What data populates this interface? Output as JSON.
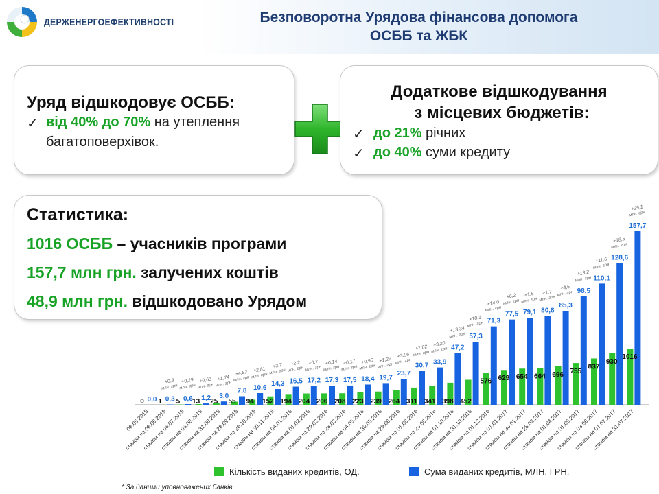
{
  "header": {
    "org_name": "ДЕРЖЕНЕРГОЕФЕКТИВНОСТІ",
    "title_line1": "Безповоротна Урядова фінансова допомога",
    "title_line2": "ОСББ та ЖБК"
  },
  "box1": {
    "heading": "Уряд відшкодовує ОСББ:",
    "bullet_mark": "✓",
    "item_highlight": "від 40%  до 70%",
    "item_text": " на утеплення",
    "item_text2": "багатоповерхівок."
  },
  "box2": {
    "heading_line1": "Додаткове відшкодування",
    "heading_line2": "з місцевих бюджетів:",
    "bullet_mark": "✓",
    "items": [
      {
        "highlight": "до 21%",
        "text": " річних"
      },
      {
        "highlight": "до 40%",
        "text": " суми кредиту"
      }
    ]
  },
  "stats": {
    "heading": "Статистика:",
    "lines": [
      {
        "highlight": "1016 ОСББ",
        "text": " – учасників програми"
      },
      {
        "highlight": "157,7 млн грн.",
        "text": " залучених коштів"
      },
      {
        "highlight": "48,9 млн грн.",
        "text": " відшкодовано Урядом"
      }
    ]
  },
  "footnote": "* За даними уповноважених банків",
  "colors": {
    "green_bar": "#2ec22e",
    "blue_bar": "#1763e0",
    "blue_label": "#1f6fd6",
    "highlight_green": "#18a326",
    "title_blue": "#1e3c72"
  },
  "chart_data": {
    "type": "bar",
    "categories": [
      "08.05.2015",
      "станом на 08.06.2015",
      "станом на 06.07.2015",
      "станом на 03.08.2015",
      "станом на 31.08.2015",
      "станом на 28.09.2015",
      "станом на 26.10.2015",
      "станом на 30.11.2015",
      "станом на 04.01.2016",
      "станом на 01.02.2016",
      "станом на 29.02.2016",
      "станом на 28.03.2016",
      "станом на 04.05.2016",
      "станом на 30.05.2016",
      "станом на 29.06.2016",
      "станом на 01.08.2016",
      "станом на 29.08.2016",
      "станом на 01.10.2016",
      "станом на 31.10.2016",
      "станом на 01.12.2016",
      "станом на 01.01.2017",
      "станом на 30.01.2017",
      "станом на 28.02.2017",
      "станом на 01.04.2017",
      "станом на 01.05.2017",
      "станом на 03.06.2017",
      "станом на 01.07.2017",
      "станом на 31.07.2017"
    ],
    "series": [
      {
        "name": "Кількість виданих кредитів, ОД.",
        "values": [
          0,
          1,
          5,
          13,
          25,
          55,
          94,
          152,
          194,
          204,
          206,
          208,
          223,
          239,
          264,
          311,
          341,
          398,
          452,
          576,
          629,
          654,
          664,
          696,
          755,
          837,
          930,
          1016
        ],
        "labels": [
          "0",
          "1",
          "5",
          "13",
          "25",
          "55",
          "94",
          "152",
          "194",
          "204",
          "206",
          "208",
          "223",
          "239",
          "264",
          "311",
          "341",
          "398",
          "452",
          "576",
          "629",
          "654",
          "664",
          "696",
          "755",
          "837",
          "930",
          "1016"
        ]
      },
      {
        "name": "Сума виданих кредитів, МЛН. ГРН.",
        "values": [
          0,
          0.3,
          0.6,
          1.2,
          3.0,
          7.8,
          10.6,
          14.3,
          16.5,
          17.2,
          17.3,
          17.5,
          18.4,
          19.7,
          23.7,
          30.7,
          33.9,
          47.2,
          57.3,
          71.3,
          77.5,
          79.1,
          80.8,
          85.3,
          98.5,
          110.1,
          128.6,
          157.7
        ],
        "labels": [
          "0,0",
          "0,3",
          "0,6",
          "1,2",
          "3,0",
          "7,8",
          "10,6",
          "14,3",
          "16,5",
          "17,2",
          "17,3",
          "17,5",
          "18,4",
          "19,7",
          "23,7",
          "30,7",
          "33,9",
          "47,2",
          "57,3",
          "71,3",
          "77,5",
          "79,1",
          "80,8",
          "85,3",
          "98,5",
          "110,1",
          "128,6",
          "157,7"
        ]
      }
    ],
    "increments": [
      "",
      "+0,3",
      "+0,29",
      "+0,63",
      "+1,74",
      "+4,82",
      "+2,81",
      "+3,7",
      "+2,2",
      "+0,7",
      "+0,14",
      "+0,17",
      "+0,95",
      "+1,29",
      "+3,96",
      "+7,02",
      "+3,20",
      "+13,34",
      "+10,1",
      "+14,0",
      "+6,2",
      "+1,6",
      "+1,7",
      "+4,5",
      "+13,2",
      "+11,6",
      "+18,5",
      "+29,1"
    ],
    "increment_unit": "млн. грн",
    "legend_position": "bottom"
  }
}
